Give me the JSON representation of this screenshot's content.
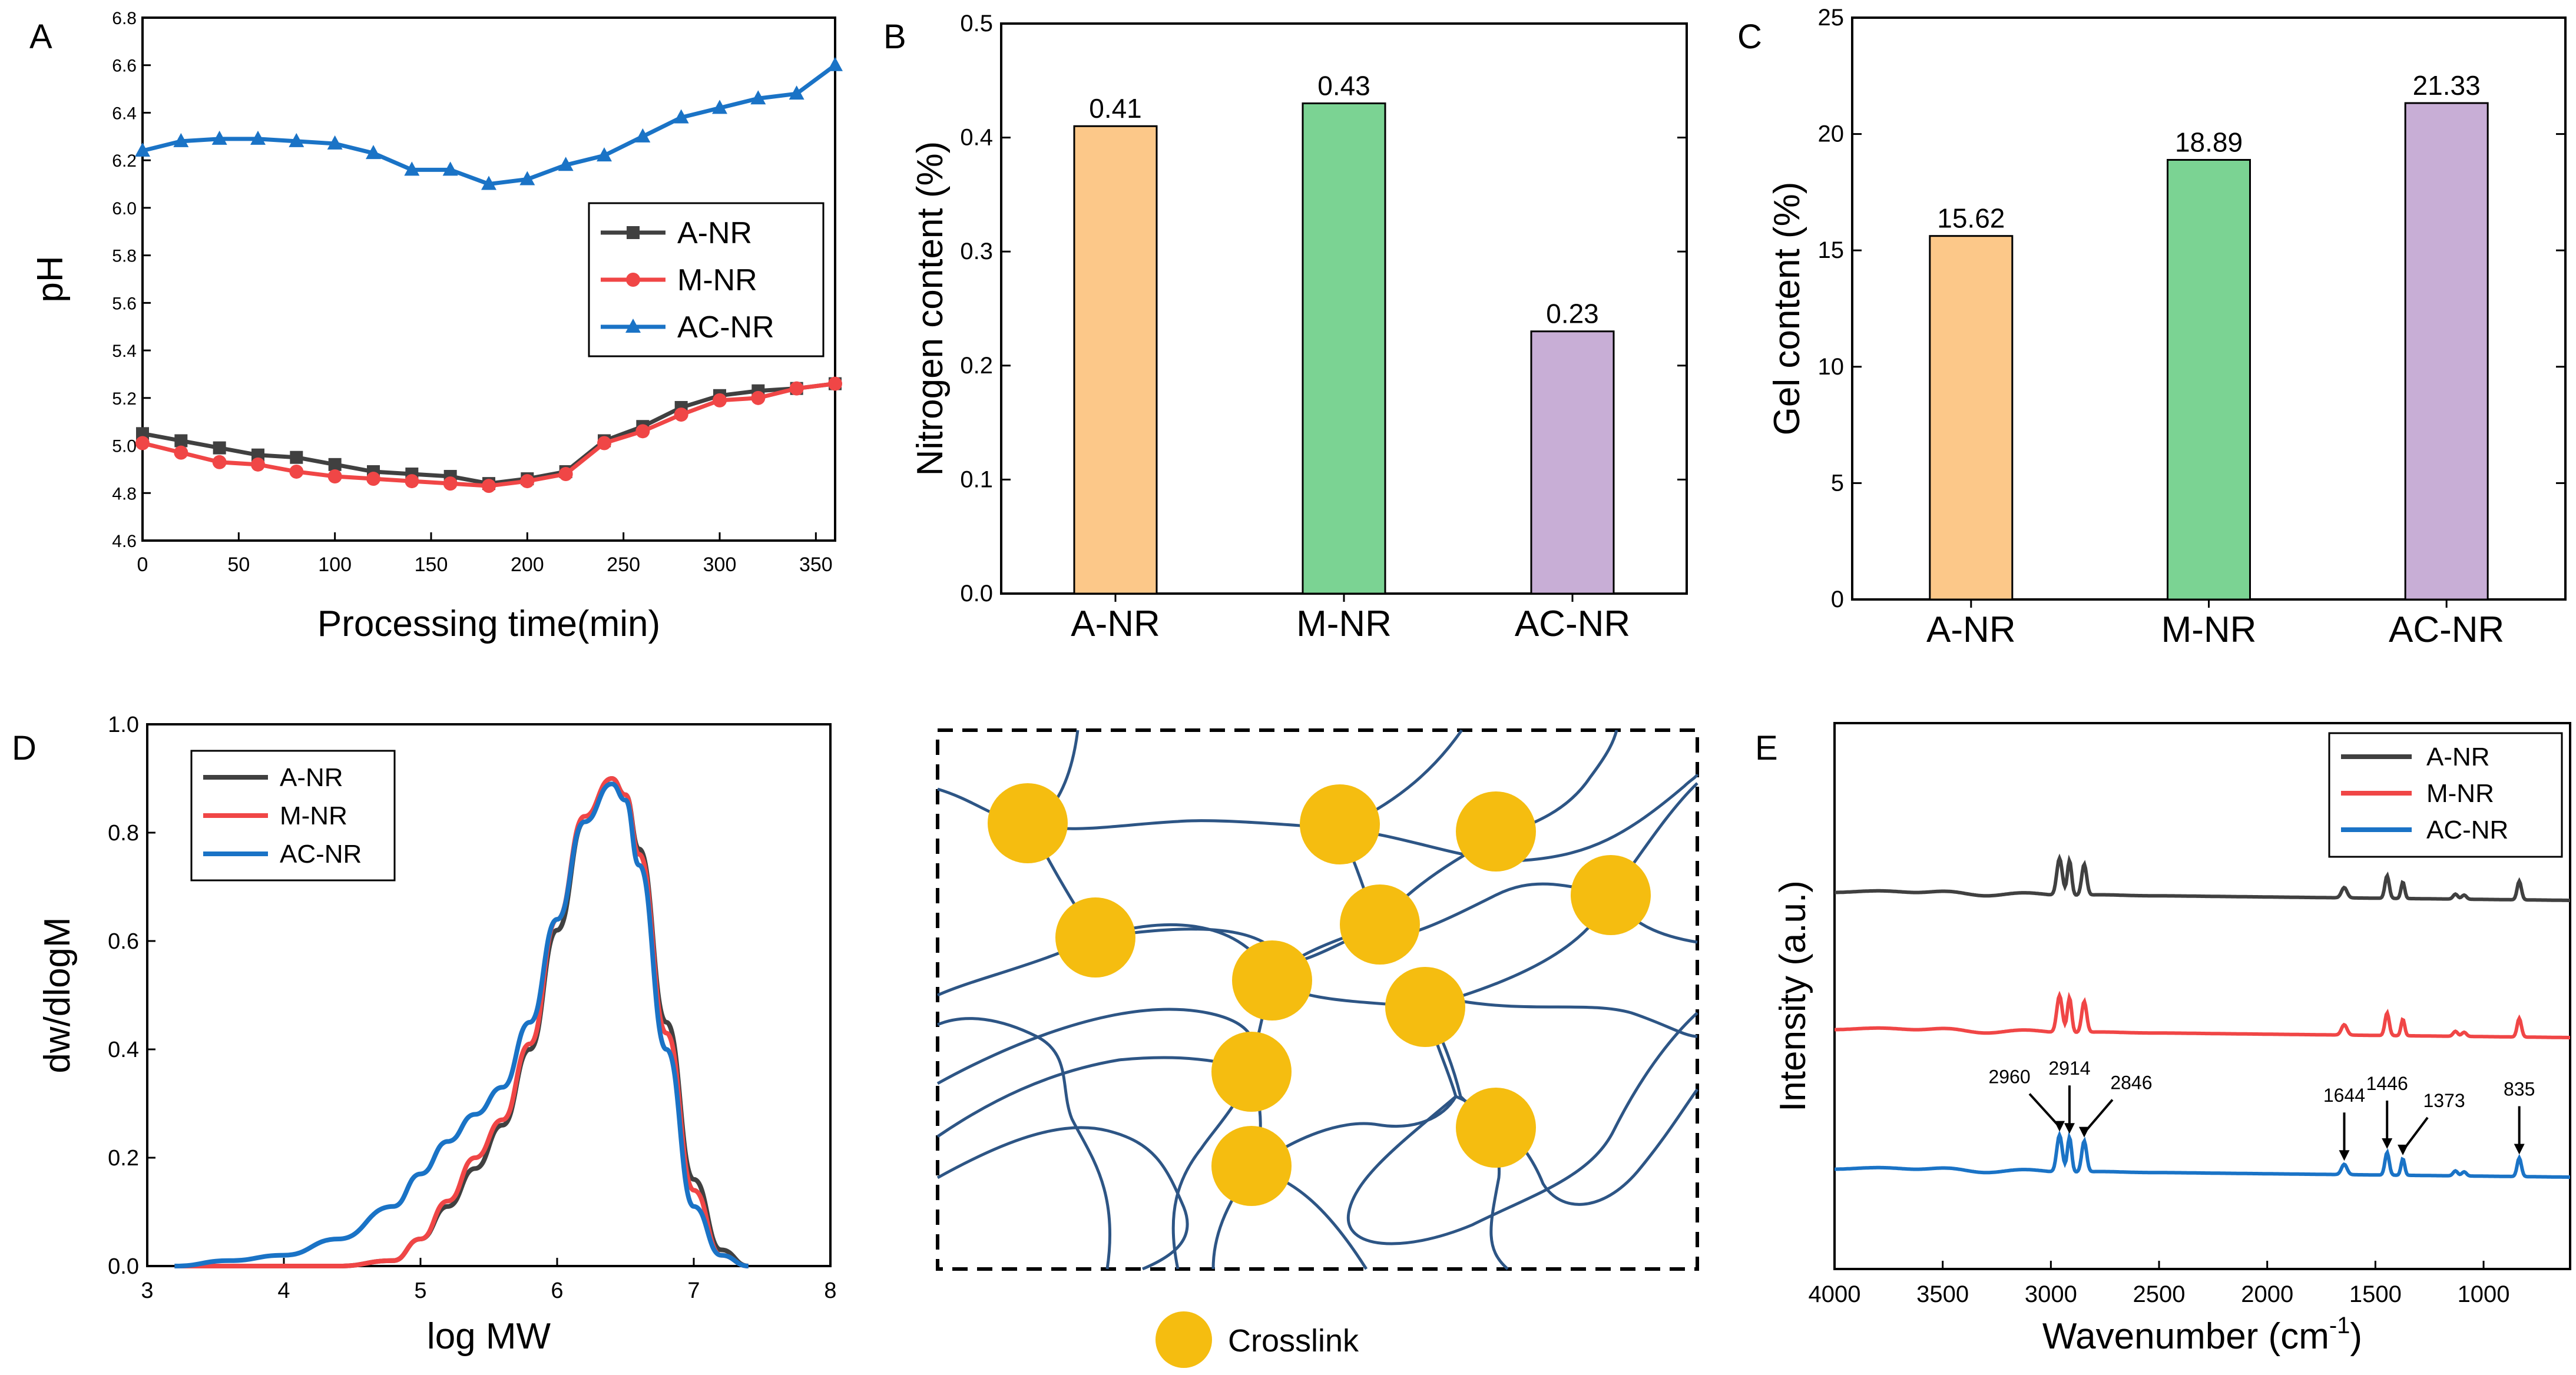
{
  "panels": [
    {
      "id": "A",
      "letter": "A"
    },
    {
      "id": "B",
      "letter": "B"
    },
    {
      "id": "C",
      "letter": "C"
    },
    {
      "id": "D",
      "letter": "D"
    },
    {
      "id": "E",
      "letter": "E"
    }
  ],
  "colors": {
    "black": "#404040",
    "red": "#f04646",
    "blue": "#1a73c6",
    "orange": "#fcc889",
    "green": "#7bd393",
    "purple": "#c8aed6",
    "crosslink": "#f5bd10",
    "network": "#2d5585"
  },
  "chart_data": [
    {
      "panel": "A",
      "type": "line",
      "xlabel": "Processing time(min)",
      "ylabel": "pH",
      "xlim": [
        0,
        360
      ],
      "ylim": [
        4.6,
        6.8
      ],
      "xticks": [
        "0",
        "50",
        "100",
        "150",
        "200",
        "250",
        "300",
        "350"
      ],
      "yticks": [
        "4.6",
        "4.8",
        "5.0",
        "5.2",
        "5.4",
        "5.6",
        "5.8",
        "6.0",
        "6.2",
        "6.4",
        "6.6",
        "6.8"
      ],
      "legend": "center-right",
      "x": [
        0,
        20,
        40,
        60,
        80,
        100,
        120,
        140,
        160,
        180,
        200,
        220,
        240,
        260,
        280,
        300,
        320,
        340,
        360
      ],
      "series": [
        {
          "name": "A-NR",
          "color": "#404040",
          "marker": "square",
          "values": [
            5.05,
            5.02,
            4.99,
            4.96,
            4.95,
            4.92,
            4.89,
            4.88,
            4.87,
            4.84,
            4.86,
            4.89,
            5.02,
            5.08,
            5.16,
            5.21,
            5.23,
            5.24,
            5.26
          ]
        },
        {
          "name": "M-NR",
          "color": "#f04646",
          "marker": "circle",
          "values": [
            5.01,
            4.97,
            4.93,
            4.92,
            4.89,
            4.87,
            4.86,
            4.85,
            4.84,
            4.83,
            4.85,
            4.88,
            5.01,
            5.06,
            5.13,
            5.19,
            5.2,
            5.24,
            5.26
          ]
        },
        {
          "name": "AC-NR",
          "color": "#1a73c6",
          "marker": "triangle",
          "values": [
            6.24,
            6.28,
            6.29,
            6.29,
            6.28,
            6.27,
            6.23,
            6.16,
            6.16,
            6.1,
            6.12,
            6.18,
            6.22,
            6.3,
            6.38,
            6.42,
            6.46,
            6.48,
            6.6
          ]
        }
      ]
    },
    {
      "panel": "B",
      "type": "bar",
      "ylabel": "Nitrogen content (%)",
      "ylim": [
        0,
        0.5
      ],
      "yticks": [
        "0.0",
        "0.1",
        "0.2",
        "0.3",
        "0.4",
        "0.5"
      ],
      "categories": [
        "A-NR",
        "M-NR",
        "AC-NR"
      ],
      "values": [
        0.41,
        0.43,
        0.23
      ],
      "labels": [
        "0.41",
        "0.43",
        "0.23"
      ],
      "bar_colors": [
        "#fcc889",
        "#7bd393",
        "#c8aed6"
      ]
    },
    {
      "panel": "C",
      "type": "bar",
      "ylabel": "Gel content (%)",
      "ylim": [
        0,
        25
      ],
      "yticks": [
        "0",
        "5",
        "10",
        "15",
        "20",
        "25"
      ],
      "categories": [
        "A-NR",
        "M-NR",
        "AC-NR"
      ],
      "values": [
        15.62,
        18.89,
        21.33
      ],
      "labels": [
        "15.62",
        "18.89",
        "21.33"
      ],
      "bar_colors": [
        "#fcc889",
        "#7bd393",
        "#c8aed6"
      ]
    },
    {
      "panel": "D",
      "type": "line",
      "xlabel": "log MW",
      "ylabel": "dw/dlogM",
      "xlim": [
        3,
        8
      ],
      "ylim": [
        0,
        1.0
      ],
      "xticks": [
        "3",
        "4",
        "5",
        "6",
        "7",
        "8"
      ],
      "yticks": [
        "0.0",
        "0.2",
        "0.4",
        "0.6",
        "0.8",
        "1.0"
      ],
      "legend": "top-left",
      "series": [
        {
          "name": "A-NR",
          "color": "#404040",
          "x": [
            3.2,
            3.6,
            4.0,
            4.4,
            4.8,
            5.0,
            5.2,
            5.4,
            5.6,
            5.8,
            6.0,
            6.2,
            6.4,
            6.5,
            6.6,
            6.8,
            7.0,
            7.2,
            7.4
          ],
          "values": [
            0.0,
            0.0,
            0.0,
            0.0,
            0.01,
            0.05,
            0.11,
            0.18,
            0.26,
            0.4,
            0.62,
            0.82,
            0.9,
            0.87,
            0.77,
            0.45,
            0.16,
            0.03,
            0.0
          ]
        },
        {
          "name": "M-NR",
          "color": "#f04646",
          "x": [
            3.2,
            3.6,
            4.0,
            4.4,
            4.8,
            5.0,
            5.2,
            5.4,
            5.6,
            5.8,
            6.0,
            6.2,
            6.4,
            6.5,
            6.6,
            6.8,
            7.0,
            7.2,
            7.4
          ],
          "values": [
            0.0,
            0.0,
            0.0,
            0.0,
            0.01,
            0.05,
            0.12,
            0.2,
            0.27,
            0.41,
            0.64,
            0.83,
            0.9,
            0.87,
            0.76,
            0.43,
            0.14,
            0.02,
            0.0
          ]
        },
        {
          "name": "AC-NR",
          "color": "#1a73c6",
          "x": [
            3.2,
            3.6,
            4.0,
            4.4,
            4.8,
            5.0,
            5.2,
            5.4,
            5.6,
            5.8,
            6.0,
            6.2,
            6.4,
            6.5,
            6.6,
            6.8,
            7.0,
            7.2,
            7.4
          ],
          "values": [
            0.0,
            0.01,
            0.02,
            0.05,
            0.11,
            0.17,
            0.23,
            0.28,
            0.33,
            0.45,
            0.64,
            0.82,
            0.89,
            0.86,
            0.74,
            0.4,
            0.11,
            0.02,
            0.0
          ]
        }
      ]
    },
    {
      "panel": "E",
      "type": "line",
      "xlabel": "Wavenumber (cm",
      "xlabel_sup": "-1",
      "xlabel_end": ")",
      "ylabel": "Intensity (a.u.)",
      "xlim": [
        4000,
        600
      ],
      "xticks": [
        "4000",
        "3500",
        "3000",
        "2500",
        "2000",
        "1500",
        "1000"
      ],
      "legend": "top-right",
      "series": [
        {
          "name": "A-NR",
          "color": "#404040",
          "offset": 2.0
        },
        {
          "name": "M-NR",
          "color": "#f04646",
          "offset": 1.0
        },
        {
          "name": "AC-NR",
          "color": "#1a73c6",
          "offset": 0.0
        }
      ],
      "peaks": [
        {
          "x": 2960,
          "label": "2960"
        },
        {
          "x": 2914,
          "label": "2914"
        },
        {
          "x": 2846,
          "label": "2846"
        },
        {
          "x": 1644,
          "label": "1644"
        },
        {
          "x": 1446,
          "label": "1446"
        },
        {
          "x": 1373,
          "label": "1373"
        },
        {
          "x": 835,
          "label": "835"
        }
      ]
    }
  ],
  "schematic": {
    "legend_label": "Crosslink"
  }
}
